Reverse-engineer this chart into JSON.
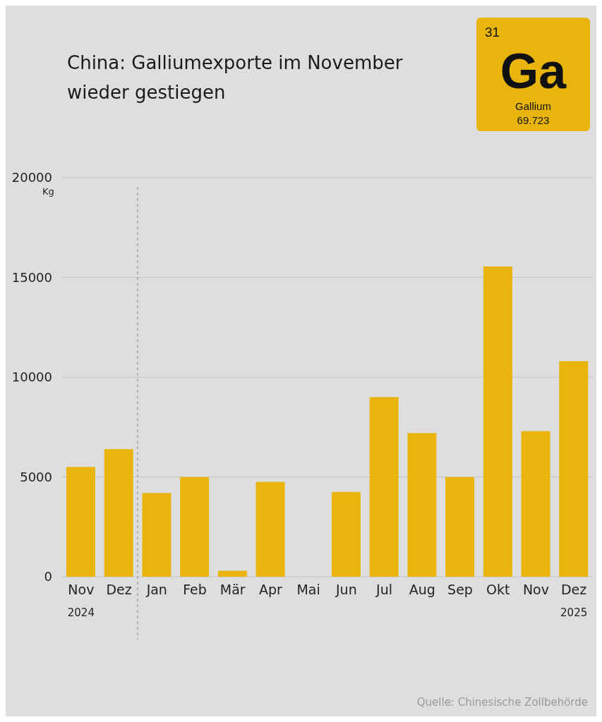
{
  "chart_data": {
    "type": "bar",
    "title": "China: Galliumexporte im November\nwieder gestiegen",
    "ylabel": "Kg",
    "categories": [
      "Nov",
      "Dez",
      "Jan",
      "Feb",
      "Mär",
      "Apr",
      "Mai",
      "Jun",
      "Jul",
      "Aug",
      "Sep",
      "Okt",
      "Nov",
      "Dez"
    ],
    "values": [
      5500,
      6400,
      4200,
      5000,
      300,
      4750,
      0,
      4250,
      9000,
      7200,
      5000,
      15550,
      7300,
      10800
    ],
    "ref_lines": [
      {
        "axis": "x",
        "value": "Jan",
        "color": "#8a8a8a",
        "line_style": "dashed"
      }
    ],
    "color": "#e9b50c",
    "ylim": [
      0,
      20000
    ],
    "yticks": [
      0,
      5000,
      10000,
      15000,
      20000
    ],
    "grid": "y",
    "legend": false,
    "annotations": [
      "2024",
      "2025",
      "31",
      "Ga",
      "Gallium",
      "69.723",
      "Quelle: Chinesische Zollbehörde"
    ]
  }
}
